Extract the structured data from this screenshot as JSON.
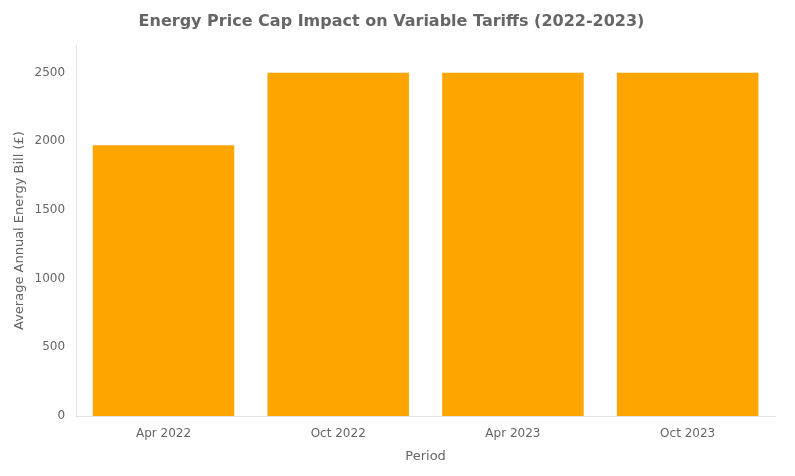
{
  "chart_data": {
    "type": "bar",
    "title": "Energy Price Cap Impact on Variable Tariffs (2022-2023)",
    "categories": [
      "Apr 2022",
      "Oct 2022",
      "Apr 2023",
      "Oct 2023"
    ],
    "values": [
      1971,
      2500,
      2500,
      2500
    ],
    "color": "#FFA500",
    "xlabel": "Period",
    "ylabel": "Average Annual Energy Bill (£)",
    "ylim": [
      0,
      2700
    ],
    "yticks": [
      0,
      500,
      1000,
      1500,
      2000,
      2500
    ],
    "grid": false
  }
}
